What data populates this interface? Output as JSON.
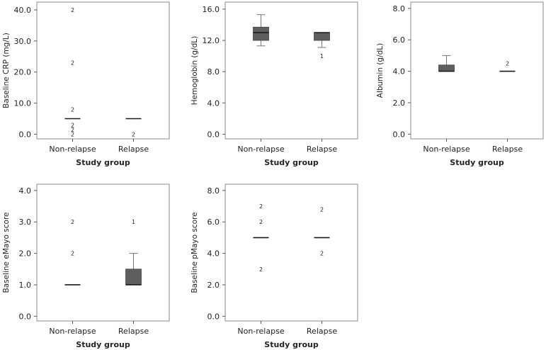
{
  "chart_data": [
    {
      "type": "boxplot",
      "ylabel": "Baseline CRP (mg/L)",
      "xlabel": "Study group",
      "categories": [
        "Non-relapse",
        "Relapse"
      ],
      "ylim": [
        -1.5,
        42.5
      ],
      "yticks": [
        0,
        10,
        20,
        30,
        40
      ],
      "ytick_labels": [
        "0.0",
        "10.0",
        "20.0",
        "30.0",
        "40.0"
      ],
      "boxes": [
        {
          "q1": 5,
          "median": 5,
          "q3": 5,
          "whisker_low": 5,
          "whisker_high": 5,
          "outliers": [
            {
              "y": 40,
              "label": "2"
            },
            {
              "y": 23,
              "label": "2"
            },
            {
              "y": 8,
              "label": "2"
            },
            {
              "y": 3,
              "label": "2"
            },
            {
              "y": 1.5,
              "label": "2"
            },
            {
              "y": 0,
              "label": "2"
            }
          ]
        },
        {
          "q1": 5,
          "median": 5,
          "q3": 5,
          "whisker_low": 5,
          "whisker_high": 5,
          "outliers": [
            {
              "y": 0,
              "label": "2"
            }
          ]
        }
      ]
    },
    {
      "type": "boxplot",
      "ylabel": "Hemoglobin (g/dL)",
      "xlabel": "Study group",
      "categories": [
        "Non-relapse",
        "Relapse"
      ],
      "ylim": [
        -0.6,
        16.9
      ],
      "yticks": [
        0,
        4,
        8,
        12,
        16
      ],
      "ytick_labels": [
        "0.0",
        "4.0",
        "8.0",
        "12.0",
        "16.0"
      ],
      "boxes": [
        {
          "q1": 12.0,
          "median": 13.0,
          "q3": 13.7,
          "whisker_low": 11.3,
          "whisker_high": 15.3,
          "outliers": []
        },
        {
          "q1": 12.0,
          "median": 13.0,
          "q3": 13.0,
          "whisker_low": 11.1,
          "whisker_high": 13.0,
          "outliers": [
            {
              "y": 10.0,
              "label": "1"
            }
          ]
        }
      ]
    },
    {
      "type": "boxplot",
      "ylabel": "Albumin (g/dL)",
      "xlabel": "Study group",
      "categories": [
        "Non-relapse",
        "Relapse"
      ],
      "ylim": [
        -0.3,
        8.4
      ],
      "yticks": [
        0,
        2,
        4,
        6,
        8
      ],
      "ytick_labels": [
        "0.0",
        "2.0",
        "4.0",
        "6.0",
        "8.0"
      ],
      "boxes": [
        {
          "q1": 4.0,
          "median": 4.0,
          "q3": 4.4,
          "whisker_low": 4.0,
          "whisker_high": 5.0,
          "outliers": []
        },
        {
          "q1": 4.0,
          "median": 4.0,
          "q3": 4.0,
          "whisker_low": 4.0,
          "whisker_high": 4.0,
          "outliers": [
            {
              "y": 4.5,
              "label": "2"
            }
          ]
        }
      ]
    },
    {
      "type": "boxplot",
      "ylabel": "Baseline eMayo score",
      "xlabel": "Study group",
      "categories": [
        "Non-relapse",
        "Relapse"
      ],
      "ylim": [
        -0.15,
        4.2
      ],
      "yticks": [
        0,
        1,
        2,
        3,
        4
      ],
      "ytick_labels": [
        "0.0",
        "1.0",
        "2.0",
        "3.0",
        "4.0"
      ],
      "boxes": [
        {
          "q1": 1,
          "median": 1,
          "q3": 1,
          "whisker_low": 1,
          "whisker_high": 1,
          "outliers": [
            {
              "y": 3,
              "label": "2"
            },
            {
              "y": 2,
              "label": "2"
            }
          ]
        },
        {
          "q1": 1,
          "median": 1,
          "q3": 1.5,
          "whisker_low": 1,
          "whisker_high": 2,
          "outliers": [
            {
              "y": 3,
              "label": "1"
            }
          ]
        }
      ]
    },
    {
      "type": "boxplot",
      "ylabel": "Baseline pMayo score",
      "xlabel": "Study group",
      "categories": [
        "Non-relapse",
        "Relapse"
      ],
      "ylim": [
        -0.3,
        8.4
      ],
      "yticks": [
        0,
        2,
        4,
        6,
        8
      ],
      "ytick_labels": [
        "0.0",
        "2.0",
        "4.0",
        "6.0",
        "8.0"
      ],
      "boxes": [
        {
          "q1": 5,
          "median": 5,
          "q3": 5,
          "whisker_low": 5,
          "whisker_high": 5,
          "outliers": [
            {
              "y": 7,
              "label": "2"
            },
            {
              "y": 6,
              "label": "2"
            },
            {
              "y": 3,
              "label": "2"
            }
          ]
        },
        {
          "q1": 5,
          "median": 5,
          "q3": 5,
          "whisker_low": 5,
          "whisker_high": 5,
          "outliers": [
            {
              "y": 6.8,
              "label": "2"
            },
            {
              "y": 4,
              "label": "2"
            }
          ]
        }
      ]
    }
  ],
  "colors": {
    "box_fill": "#5f5f5f",
    "frame": "#8a8a8a",
    "text": "#222222"
  }
}
